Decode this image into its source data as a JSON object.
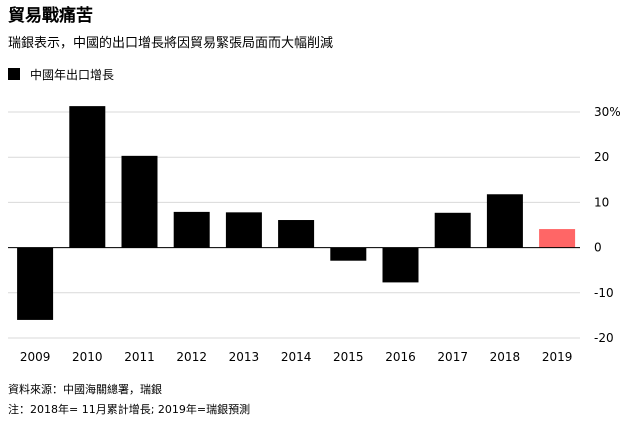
{
  "title": "貿易戰痛苦",
  "subtitle": "瑞銀表示，中國的出口增長將因貿易緊張局面而大幅削減",
  "footer": {
    "source": "資料來源：中國海關總署，瑞銀",
    "note": "注：2018年= 11月累計增長; 2019年=瑞銀預測"
  },
  "colors": {
    "actual": "#000000",
    "forecast": "#ff6666",
    "grid": "#d9d9d9"
  },
  "chart_data": {
    "type": "bar",
    "title": "",
    "xlabel": "",
    "ylabel": "",
    "categories": [
      "2009",
      "2010",
      "2011",
      "2012",
      "2013",
      "2014",
      "2015",
      "2016",
      "2017",
      "2018",
      "2019"
    ],
    "series": [
      {
        "name": "中國年出口增長",
        "values": [
          -16,
          31.3,
          20.3,
          7.9,
          7.8,
          6.1,
          -2.9,
          -7.7,
          7.7,
          11.8,
          4.1
        ]
      }
    ],
    "forecast_category": "2019",
    "ylim": [
      -20,
      30
    ],
    "yticks": [
      -20,
      -10,
      0,
      10,
      20,
      30
    ],
    "ytick_labels": [
      "-20",
      "-10",
      "0",
      "10",
      "20",
      "30%"
    ],
    "grid": true,
    "legend_position": "top-left"
  }
}
